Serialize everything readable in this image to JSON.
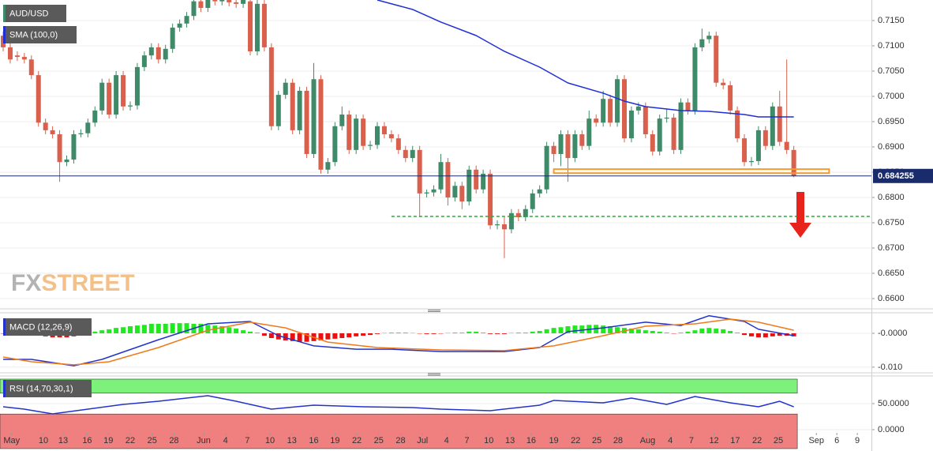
{
  "chart_data": [
    {
      "type": "candlestick",
      "title": "AUD/USD",
      "up_color": "#3f8a68",
      "down_color": "#d9604c",
      "open": [
        0.712,
        0.7097,
        0.7081,
        0.7078,
        0.7073,
        0.7042,
        0.6948,
        0.6933,
        0.6925,
        0.687,
        0.6875,
        0.6925,
        0.6927,
        0.6948,
        0.6972,
        0.7027,
        0.6964,
        0.7042,
        0.698,
        0.6982,
        0.7058,
        0.7081,
        0.7097,
        0.7073,
        0.7094,
        0.7136,
        0.7144,
        0.7159,
        0.7188,
        0.7175,
        0.7191,
        0.7188,
        0.7193,
        0.7186,
        0.7183,
        0.7188,
        0.7089,
        0.7183,
        0.7097,
        0.6941,
        0.7003,
        0.7027,
        0.6933,
        0.7011,
        0.6886,
        0.7034,
        0.6855,
        0.687,
        0.6941,
        0.6964,
        0.6894,
        0.6956,
        0.6902,
        0.6904,
        0.6941,
        0.6925,
        0.6917,
        0.6894,
        0.6878,
        0.6894,
        0.6808,
        0.681,
        0.6816,
        0.687,
        0.68,
        0.6823,
        0.6792,
        0.6855,
        0.6816,
        0.6847,
        0.6745,
        0.6747,
        0.6737,
        0.6769,
        0.6761,
        0.6777,
        0.6808,
        0.6816,
        0.6902,
        0.6886,
        0.6925,
        0.6878,
        0.6925,
        0.6902,
        0.6956,
        0.6948,
        0.6995,
        0.6948,
        0.7034,
        0.6917,
        0.6972,
        0.698,
        0.6925,
        0.6891,
        0.6956,
        0.6958,
        0.6894,
        0.6988,
        0.6972,
        0.7097,
        0.7113,
        0.712,
        0.7027,
        0.7022,
        0.6972,
        0.6917,
        0.687,
        0.6872,
        0.6933,
        0.6902,
        0.698,
        0.691,
        0.6894
      ],
      "high": [
        0.7128,
        0.7105,
        0.7089,
        0.7086,
        0.7081,
        0.705,
        0.6956,
        0.6941,
        0.6933,
        0.6883,
        0.6933,
        0.6935,
        0.6956,
        0.698,
        0.7035,
        0.7035,
        0.705,
        0.705,
        0.699,
        0.7066,
        0.7089,
        0.7105,
        0.7105,
        0.7102,
        0.7144,
        0.7152,
        0.7167,
        0.7196,
        0.7196,
        0.7199,
        0.7199,
        0.7201,
        0.7201,
        0.7194,
        0.72,
        0.7196,
        0.7191,
        0.7191,
        0.7105,
        0.7011,
        0.7035,
        0.7035,
        0.7019,
        0.7019,
        0.7066,
        0.7042,
        0.6878,
        0.6949,
        0.698,
        0.6972,
        0.6964,
        0.6964,
        0.6912,
        0.6949,
        0.6949,
        0.6933,
        0.6925,
        0.6902,
        0.6902,
        0.6902,
        0.6816,
        0.6824,
        0.6886,
        0.6878,
        0.6831,
        0.6831,
        0.6863,
        0.6863,
        0.6855,
        0.6855,
        0.6755,
        0.6761,
        0.6777,
        0.6777,
        0.6785,
        0.6816,
        0.6824,
        0.691,
        0.691,
        0.6933,
        0.6933,
        0.6933,
        0.6933,
        0.6972,
        0.6964,
        0.7011,
        0.7003,
        0.7042,
        0.7042,
        0.698,
        0.6988,
        0.6988,
        0.6933,
        0.6964,
        0.6975,
        0.6966,
        0.6996,
        0.6996,
        0.7105,
        0.7134,
        0.7128,
        0.7128,
        0.7035,
        0.703,
        0.698,
        0.6925,
        0.688,
        0.6941,
        0.6941,
        0.6988,
        0.7011,
        0.7073,
        0.6902
      ],
      "low": [
        0.7089,
        0.7065,
        0.707,
        0.7065,
        0.7034,
        0.694,
        0.6925,
        0.6917,
        0.6831,
        0.6862,
        0.6867,
        0.6919,
        0.6919,
        0.694,
        0.6964,
        0.6956,
        0.6956,
        0.6972,
        0.6972,
        0.6974,
        0.705,
        0.7073,
        0.7065,
        0.7065,
        0.7086,
        0.7128,
        0.7136,
        0.7151,
        0.7167,
        0.7167,
        0.718,
        0.718,
        0.7178,
        0.7175,
        0.7175,
        0.7081,
        0.7081,
        0.7089,
        0.6933,
        0.6933,
        0.6995,
        0.6925,
        0.6925,
        0.6878,
        0.6878,
        0.6847,
        0.6847,
        0.6862,
        0.6933,
        0.6886,
        0.6886,
        0.6894,
        0.6894,
        0.6896,
        0.6917,
        0.6909,
        0.6886,
        0.687,
        0.687,
        0.6761,
        0.68,
        0.6802,
        0.6808,
        0.6784,
        0.6792,
        0.6777,
        0.6784,
        0.6808,
        0.6808,
        0.6737,
        0.6737,
        0.668,
        0.6729,
        0.6753,
        0.6753,
        0.6769,
        0.68,
        0.6808,
        0.687,
        0.6862,
        0.6831,
        0.687,
        0.6894,
        0.6894,
        0.694,
        0.694,
        0.694,
        0.694,
        0.6909,
        0.6909,
        0.6964,
        0.6917,
        0.6883,
        0.6883,
        0.6948,
        0.6886,
        0.6886,
        0.6964,
        0.6964,
        0.7089,
        0.7105,
        0.7019,
        0.7014,
        0.6964,
        0.6909,
        0.6862,
        0.6862,
        0.6864,
        0.6894,
        0.6894,
        0.6902,
        0.6886,
        0.684
      ],
      "close": [
        0.7097,
        0.7073,
        0.7078,
        0.7073,
        0.7042,
        0.6948,
        0.6933,
        0.6925,
        0.687,
        0.6875,
        0.6925,
        0.6927,
        0.6948,
        0.6972,
        0.7027,
        0.6964,
        0.7042,
        0.698,
        0.6982,
        0.7058,
        0.7081,
        0.7097,
        0.7073,
        0.7094,
        0.7136,
        0.7144,
        0.7159,
        0.7188,
        0.7175,
        0.7191,
        0.7188,
        0.7193,
        0.7186,
        0.7183,
        0.7192,
        0.7089,
        0.7183,
        0.7097,
        0.6941,
        0.7003,
        0.7027,
        0.6933,
        0.7011,
        0.6886,
        0.7034,
        0.6855,
        0.687,
        0.6941,
        0.6964,
        0.6894,
        0.6956,
        0.6902,
        0.6904,
        0.6941,
        0.6925,
        0.6917,
        0.6894,
        0.6878,
        0.6894,
        0.6808,
        0.681,
        0.6816,
        0.687,
        0.68,
        0.6823,
        0.6792,
        0.6855,
        0.6816,
        0.6847,
        0.6745,
        0.6747,
        0.6737,
        0.6769,
        0.6761,
        0.6777,
        0.6808,
        0.6816,
        0.6902,
        0.6886,
        0.6925,
        0.6878,
        0.6925,
        0.6902,
        0.6956,
        0.6948,
        0.6995,
        0.6948,
        0.7034,
        0.6917,
        0.6972,
        0.698,
        0.6925,
        0.6891,
        0.6956,
        0.6958,
        0.6894,
        0.6988,
        0.6972,
        0.7097,
        0.7113,
        0.712,
        0.7027,
        0.7022,
        0.6972,
        0.6917,
        0.687,
        0.6872,
        0.6933,
        0.6902,
        0.698,
        0.691,
        0.6894,
        0.6843
      ],
      "series": [
        {
          "name": "SMA (100,0)",
          "color": "#1f2fd6",
          "x": [
            53,
            58,
            62,
            67,
            71,
            76,
            80,
            85,
            88,
            91,
            96,
            100,
            105,
            107,
            112
          ],
          "values": [
            0.71906,
            0.71719,
            0.71469,
            0.71203,
            0.70891,
            0.70578,
            0.70266,
            0.70063,
            0.69906,
            0.69797,
            0.69719,
            0.69703,
            0.69641,
            0.69594,
            0.69594
          ]
        }
      ],
      "last_price": {
        "value": 0.684255,
        "label": "0.684255"
      },
      "last_color": "#1a2b6b",
      "support_zone": {
        "x": [
          78,
          117
        ],
        "y": [
          0.6848,
          0.6856
        ],
        "color": "#f59a2d"
      },
      "target_line": {
        "x": [
          55,
          123
        ],
        "value": 0.67625,
        "color": "#2ea836"
      },
      "watermark": [
        "FX",
        "STREET"
      ],
      "xlim": [
        -0.45,
        123
      ],
      "xticks": [
        {
          "value": 1.2,
          "label": "May"
        },
        {
          "value": 5.7,
          "label": "10"
        },
        {
          "value": 8.5,
          "label": "13"
        },
        {
          "value": 11.9,
          "label": "16"
        },
        {
          "value": 14.9,
          "label": "19"
        },
        {
          "value": 18,
          "label": "22"
        },
        {
          "value": 21.1,
          "label": "25"
        },
        {
          "value": 24.2,
          "label": "28"
        },
        {
          "value": 28.4,
          "label": "Jun"
        },
        {
          "value": 31.5,
          "label": "4"
        },
        {
          "value": 34.6,
          "label": "7"
        },
        {
          "value": 37.8,
          "label": "10"
        },
        {
          "value": 40.9,
          "label": "13"
        },
        {
          "value": 44,
          "label": "16"
        },
        {
          "value": 47,
          "label": "19"
        },
        {
          "value": 50.1,
          "label": "22"
        },
        {
          "value": 53.2,
          "label": "25"
        },
        {
          "value": 56.3,
          "label": "28"
        },
        {
          "value": 59.4,
          "label": "Jul"
        },
        {
          "value": 62.8,
          "label": "4"
        },
        {
          "value": 65.7,
          "label": "7"
        },
        {
          "value": 68.8,
          "label": "10"
        },
        {
          "value": 71.8,
          "label": "13"
        },
        {
          "value": 74.8,
          "label": "16"
        },
        {
          "value": 78,
          "label": "19"
        },
        {
          "value": 81.1,
          "label": "22"
        },
        {
          "value": 84.1,
          "label": "25"
        },
        {
          "value": 87.1,
          "label": "28"
        },
        {
          "value": 91.3,
          "label": "Aug"
        },
        {
          "value": 94.5,
          "label": "4"
        },
        {
          "value": 97.5,
          "label": "7"
        },
        {
          "value": 100.7,
          "label": "12"
        },
        {
          "value": 103.7,
          "label": "17"
        },
        {
          "value": 106.8,
          "label": "22"
        },
        {
          "value": 109.8,
          "label": "25"
        },
        {
          "value": 115.2,
          "label": "Sep"
        },
        {
          "value": 118.1,
          "label": "6"
        },
        {
          "value": 121,
          "label": "9"
        }
      ],
      "ylim": [
        0.65813,
        0.71906
      ],
      "yticks": [
        {
          "value": 0.715,
          "label": "0.7150"
        },
        {
          "value": 0.71,
          "label": "0.7100"
        },
        {
          "value": 0.705,
          "label": "0.7050"
        },
        {
          "value": 0.7,
          "label": "0.7000"
        },
        {
          "value": 0.695,
          "label": "0.6950"
        },
        {
          "value": 0.69,
          "label": "0.6900"
        },
        {
          "value": 0.685,
          "label": "0.6850"
        },
        {
          "value": 0.68,
          "label": "0.6800"
        },
        {
          "value": 0.675,
          "label": "0.6750"
        },
        {
          "value": 0.67,
          "label": "0.6700"
        },
        {
          "value": 0.665,
          "label": "0.6650"
        },
        {
          "value": 0.66,
          "label": "0.6600"
        }
      ],
      "grid": true
    },
    {
      "type": "macd",
      "title": "MACD (12,26,9)",
      "up_color": "#22e81f",
      "down_color": "#e81010",
      "histogram": [
        -0.0001,
        -0.0001,
        -0.0001,
        -0.0001,
        -0.0001,
        -0.0007,
        -0.0009,
        -0.0012,
        -0.0012,
        -0.0012,
        -0.0009,
        -0.0005,
        -0.0002,
        0.0005,
        0.0009,
        0.0012,
        0.0016,
        0.0018,
        0.0021,
        0.0023,
        0.0025,
        0.0028,
        0.0028,
        0.0028,
        0.003,
        0.003,
        0.003,
        0.0028,
        0.0028,
        0.0025,
        0.0023,
        0.0021,
        0.0018,
        0.0014,
        0.0009,
        0.0005,
        0.0002,
        -0.0007,
        -0.0014,
        -0.0018,
        -0.0021,
        -0.0023,
        -0.0025,
        -0.0025,
        -0.0023,
        -0.0021,
        -0.0018,
        -0.0016,
        -0.0014,
        -0.0012,
        -0.0009,
        -0.0007,
        -0.0005,
        -0.0002,
        0.0001,
        0.0002,
        0.0002,
        0.0002,
        0.0001,
        -0.0001,
        -0.0002,
        -0.0002,
        -0.0001,
        0.0001,
        0.0002,
        0.0002,
        0.0005,
        0.0005,
        0.0002,
        -0.0002,
        -0.0002,
        -0.0002,
        0.0001,
        0.0002,
        0.0002,
        0.0005,
        0.0007,
        0.0012,
        0.0016,
        0.0018,
        0.0021,
        0.0023,
        0.0023,
        0.0025,
        0.0025,
        0.0023,
        0.0021,
        0.0018,
        0.0016,
        0.0014,
        0.0012,
        0.0009,
        0.0007,
        0.0005,
        0.0002,
        -0.0001,
        0.0002,
        0.0005,
        0.0009,
        0.0014,
        0.0016,
        0.0014,
        0.0012,
        0.0007,
        0.0002,
        -0.0005,
        -0.0009,
        -0.0012,
        -0.0012,
        -0.0009,
        -0.0007,
        -0.0007,
        -0.0009
      ],
      "series": [
        {
          "color": "#2233cc",
          "x": [
            0,
            4,
            10,
            14,
            22,
            29,
            35,
            39,
            44,
            50,
            55,
            62,
            71,
            76,
            80,
            85,
            91,
            96,
            100,
            105,
            107,
            112
          ],
          "values": [
            -0.0077,
            -0.0077,
            -0.0096,
            -0.0077,
            -0.0019,
            0.0028,
            0.0035,
            -0.0007,
            -0.0037,
            -0.0047,
            -0.0047,
            -0.0054,
            -0.0054,
            -0.0042,
            0.0005,
            0.0016,
            0.0033,
            0.0023,
            0.0052,
            0.0035,
            0.0012,
            -0.0007
          ]
        },
        {
          "color": "#f07a1a",
          "x": [
            0,
            4,
            10,
            15,
            22,
            29,
            35,
            40,
            46,
            53,
            62,
            71,
            78,
            85,
            91,
            98,
            103,
            107,
            112
          ],
          "values": [
            -0.007,
            -0.0084,
            -0.0093,
            -0.0084,
            -0.0042,
            0.0009,
            0.0033,
            0.0016,
            -0.0026,
            -0.0042,
            -0.0049,
            -0.0051,
            -0.0037,
            -0.0007,
            0.0021,
            0.0028,
            0.0042,
            0.0033,
            0.0009
          ]
        }
      ],
      "ylim": [
        -0.0112,
        0.0056
      ],
      "yticks": [
        {
          "value": 0,
          "label": "-0.0000"
        },
        {
          "value": -0.01,
          "label": "-0.010"
        }
      ],
      "grid": true
    },
    {
      "type": "rsi",
      "title": "RSI (14,70,30,1)",
      "overbought": 70,
      "oversold": 30,
      "overbought_color": "#7cf27a",
      "oversold_color": "#f07f7f",
      "series": [
        {
          "color": "#2233cc",
          "x": [
            0,
            3,
            7,
            12,
            17,
            22,
            29,
            33,
            38,
            44,
            51,
            58,
            62,
            69,
            76,
            78,
            85,
            89,
            94,
            98,
            103,
            107,
            110,
            112
          ],
          "values": [
            43.9,
            39.4,
            30.3,
            39.4,
            48.5,
            54.5,
            65.2,
            54.5,
            39.4,
            47,
            43.9,
            42.4,
            39.4,
            36.4,
            47,
            56.1,
            51.5,
            60.6,
            48.5,
            63.6,
            51.5,
            43.9,
            54.5,
            43.9
          ]
        }
      ],
      "ylim": [
        -36.4,
        100
      ],
      "yticks": [
        {
          "value": 50,
          "label": "50.0000"
        },
        {
          "value": 0,
          "label": "0.0000"
        }
      ],
      "grid": true
    }
  ]
}
